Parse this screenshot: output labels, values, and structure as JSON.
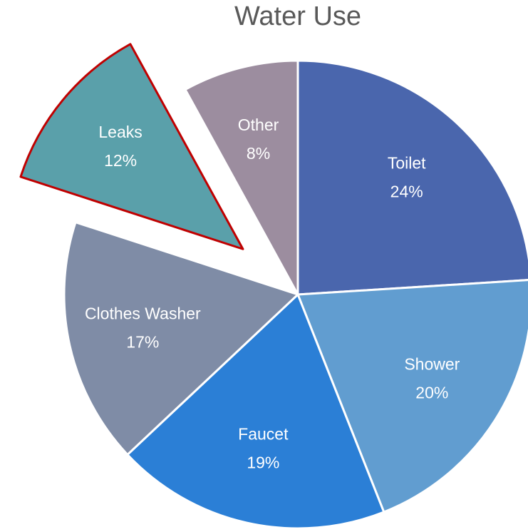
{
  "chart_data": {
    "type": "pie",
    "title": "Water Use",
    "categories": [
      "Toilet",
      "Shower",
      "Faucet",
      "Clothes Washer",
      "Leaks",
      "Other"
    ],
    "values": [
      24,
      20,
      19,
      17,
      12,
      8
    ],
    "value_labels": [
      "24%",
      "20%",
      "19%",
      "17%",
      "12%",
      "8%"
    ],
    "colors": [
      "#4a66ad",
      "#619dd0",
      "#2b7fd6",
      "#7f8ca6",
      "#5aa0aa",
      "#9c8d9f"
    ],
    "explode": [
      false,
      false,
      false,
      false,
      true,
      false
    ],
    "explode_edge_color": "#c00000"
  }
}
